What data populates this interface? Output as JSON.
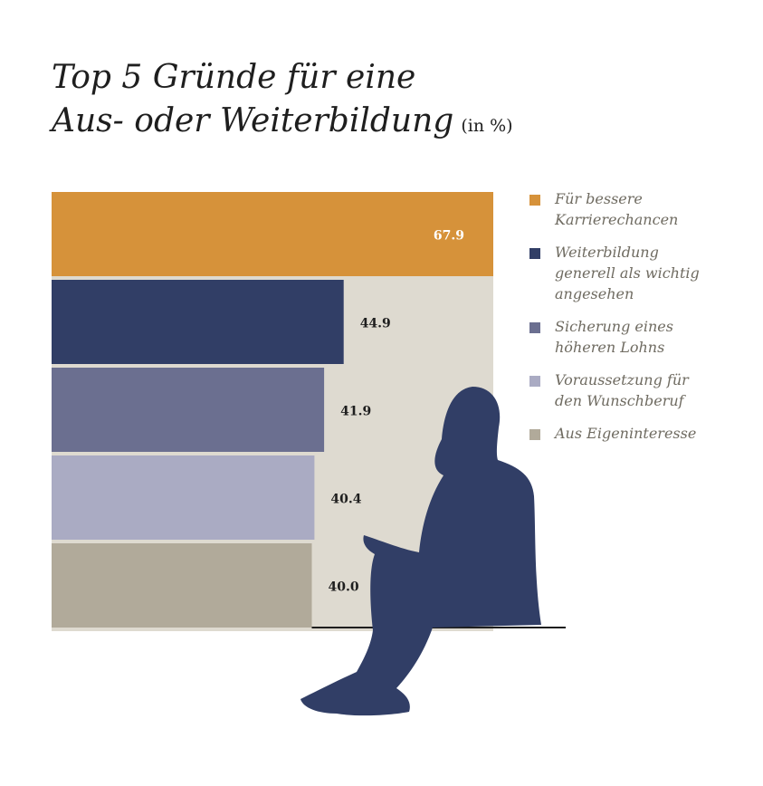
{
  "title": {
    "line1": "Top 5 Gründe für eine",
    "line2": "Aus- oder Weiterbildung",
    "unit": "(in %)"
  },
  "chart_data": {
    "type": "bar",
    "orientation": "horizontal",
    "unit": "%",
    "xlim": [
      0,
      67.9
    ],
    "grid": false,
    "legend_position": "right",
    "series": [
      {
        "name": "Für bessere\nKarrierechancen",
        "value": 67.9,
        "label": "67.9",
        "color": "#d6923a"
      },
      {
        "name": "Weiterbildung\ngenerell als wichtig\nangesehen",
        "value": 44.9,
        "label": "44.9",
        "color": "#313e66"
      },
      {
        "name": "Sicherung eines\nhöheren Lohns",
        "value": 41.9,
        "label": "41.9",
        "color": "#6b6f90"
      },
      {
        "name": "Voraussetzung für\nden Wunschberuf",
        "value": 40.4,
        "label": "40.4",
        "color": "#aaabc3"
      },
      {
        "name": "Aus Eigeninteresse",
        "value": 40.0,
        "label": "40.0",
        "color": "#b1aa9a"
      }
    ]
  },
  "colors": {
    "panel": "#dedad0",
    "silhouette": "#313e66",
    "baseline": "#1e1e1e",
    "inside_label": "#ffffff",
    "outside_label": "#1e1e1e"
  },
  "illustration": "sitting-woman-silhouette"
}
